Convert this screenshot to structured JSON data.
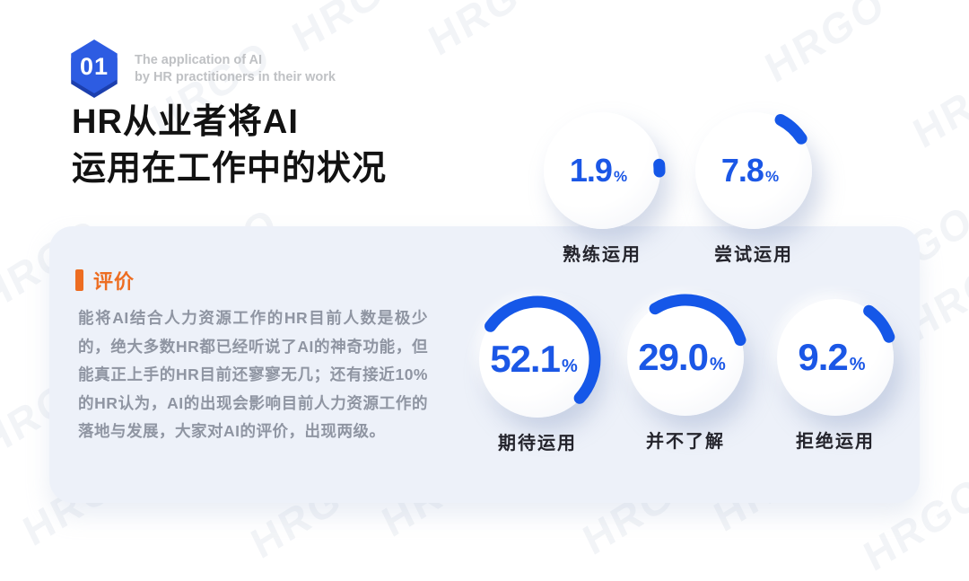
{
  "watermark": {
    "text": "HRGO"
  },
  "header": {
    "badge_number": "01",
    "subtitle_line1": "The application of AI",
    "subtitle_line2": "by HR practitioners in their work",
    "title_line1": "HR从业者将AI",
    "title_line2": "运用在工作中的状况"
  },
  "review_panel": {
    "heading": "评价",
    "body": "能将AI结合人力资源工作的HR目前人数是极少的，绝大多数HR都已经听说了AI的神奇功能，但能真正上手的HR目前还寥寥无几；还有接近10%的HR认为，AI的出现会影响目前人力资源工作的落地与发展，大家对AI的评价，出现两级。"
  },
  "stats": [
    {
      "value": "1.9",
      "unit": "%",
      "label": "熟练运用"
    },
    {
      "value": "7.8",
      "unit": "%",
      "label": "尝试运用"
    },
    {
      "value": "52.1",
      "unit": "%",
      "label": "期待运用"
    },
    {
      "value": "29.0",
      "unit": "%",
      "label": "并不了解"
    },
    {
      "value": "9.2",
      "unit": "%",
      "label": "拒绝运用"
    }
  ],
  "chart_data": {
    "type": "pie",
    "subtype": "percentage-gauges",
    "title": "HR从业者将AI运用在工作中的状况",
    "categories": [
      "熟练运用",
      "尝试运用",
      "期待运用",
      "并不了解",
      "拒绝运用"
    ],
    "values": [
      1.9,
      7.8,
      52.1,
      29.0,
      9.2
    ],
    "unit": "%",
    "accent_color": "#1557e8",
    "legend_position": "label-below-each-gauge"
  },
  "colors": {
    "accent_blue": "#1557e8",
    "badge_blue": "#2d5ce2",
    "accent_orange": "#ed6d22",
    "panel_bg": "#edf1f9",
    "title_text": "#121212",
    "body_text": "#8f95a2"
  }
}
